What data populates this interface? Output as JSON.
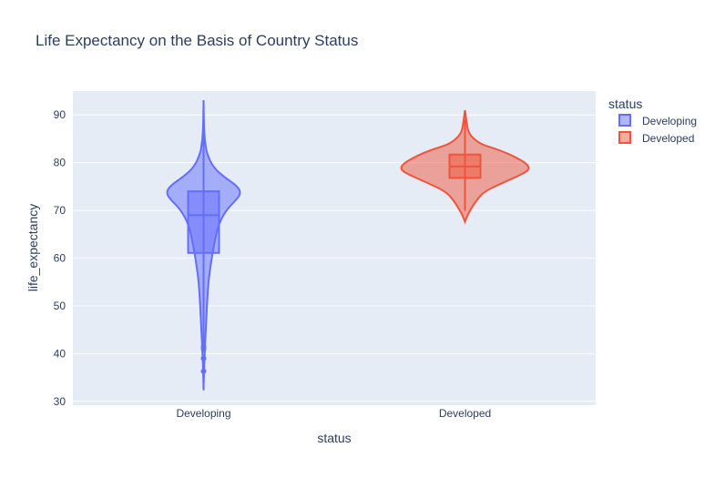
{
  "chart_data": {
    "type": "violin",
    "title": "Life Expectancy on the Basis of Country Status",
    "xlabel": "status",
    "ylabel": "life_expectancy",
    "categories": [
      "Developing",
      "Developed"
    ],
    "ylim": [
      29.2,
      95
    ],
    "yticks": [
      30,
      40,
      50,
      60,
      70,
      80,
      90
    ],
    "grid": true,
    "legend": {
      "title": "status",
      "placement": "right"
    },
    "series": [
      {
        "name": "Developing",
        "color": "#636efa",
        "min": 36.3,
        "q1": 61.1,
        "median": 69.0,
        "q3": 74.0,
        "max": 89.0,
        "whisker_low": 41.7,
        "outliers": [
          41.0,
          41.4,
          39.0,
          36.3
        ],
        "kde_range": [
          32.3,
          93.1
        ],
        "density": [
          [
            32.3,
            0.0
          ],
          [
            36,
            0.01
          ],
          [
            40,
            0.03
          ],
          [
            45,
            0.06
          ],
          [
            50,
            0.09
          ],
          [
            55,
            0.13
          ],
          [
            58,
            0.18
          ],
          [
            61,
            0.24
          ],
          [
            64,
            0.31
          ],
          [
            67,
            0.4
          ],
          [
            70,
            0.6
          ],
          [
            72,
            0.85
          ],
          [
            73.5,
            1.0
          ],
          [
            75,
            0.92
          ],
          [
            77,
            0.55
          ],
          [
            79,
            0.26
          ],
          [
            82,
            0.08
          ],
          [
            85,
            0.03
          ],
          [
            88,
            0.01
          ],
          [
            93.1,
            0.0
          ]
        ]
      },
      {
        "name": "Developed",
        "color": "#ef553b",
        "q1": 76.8,
        "median": 79.2,
        "q3": 81.7,
        "max": 89.0,
        "whisker_low": 69.9,
        "kde_range": [
          67.6,
          91.0
        ],
        "density": [
          [
            67.6,
            0.0
          ],
          [
            69,
            0.04
          ],
          [
            70,
            0.08
          ],
          [
            72,
            0.17
          ],
          [
            74,
            0.3
          ],
          [
            76,
            0.62
          ],
          [
            78,
            0.95
          ],
          [
            79,
            1.0
          ],
          [
            80,
            0.93
          ],
          [
            81,
            0.8
          ],
          [
            82,
            0.65
          ],
          [
            83,
            0.45
          ],
          [
            84,
            0.22
          ],
          [
            86,
            0.06
          ],
          [
            88,
            0.03
          ],
          [
            90,
            0.01
          ],
          [
            91.0,
            0.0
          ]
        ]
      }
    ]
  }
}
